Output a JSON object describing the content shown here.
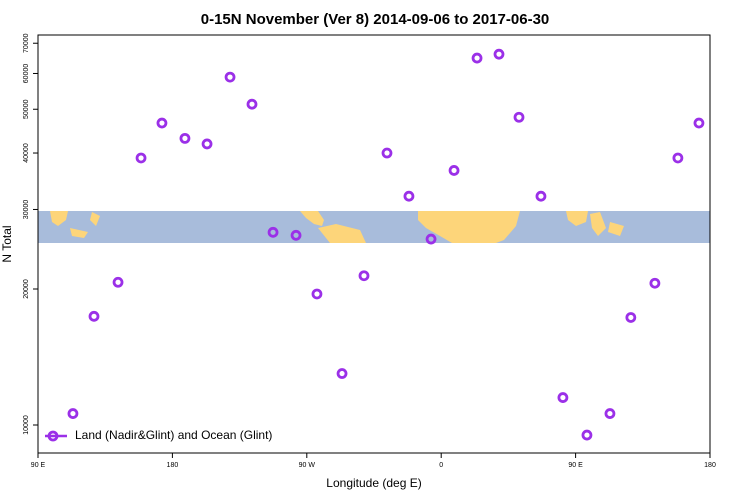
{
  "chart_data": {
    "type": "scatter",
    "title": "0-15N November (Ver 8)   2014-09-06 to 2017-06-30",
    "xlabel": "Longitude (deg E)",
    "ylabel": "N Total",
    "series": [
      {
        "name": "Land (Nadir&Glint) and Ocean (Glint)",
        "color": "#9b30e8",
        "x": [
          113.4,
          127.5,
          143.6,
          159,
          173,
          188.4,
          203.2,
          218.6,
          233.3,
          247.4,
          262.8,
          276.8,
          293.6,
          308.3,
          323.7,
          338.4,
          353.2,
          368.6,
          384,
          398.7,
          412.1,
          426.8,
          441.5,
          457.6,
          473,
          487,
          503.1,
          518.5,
          532.6
        ],
        "values": [
          10600,
          17400,
          20700,
          39000,
          46600,
          43100,
          41900,
          58900,
          51300,
          26700,
          26300,
          19500,
          13000,
          21400,
          40000,
          32100,
          25800,
          36600,
          64900,
          66200,
          48000,
          32100,
          11500,
          9500,
          10600,
          17300,
          20600,
          39000,
          46600
        ]
      }
    ],
    "xlim": [
      90,
      540
    ],
    "xticks": [
      {
        "value": 90,
        "label": "90 E"
      },
      {
        "value": 180,
        "label": "180"
      },
      {
        "value": 270,
        "label": "90 W"
      },
      {
        "value": 360,
        "label": "0"
      },
      {
        "value": 450,
        "label": "90 E"
      },
      {
        "value": 540,
        "label": "180"
      }
    ],
    "ylim": [
      8670,
      73000
    ],
    "yticks": [
      10000,
      20000,
      30000,
      40000,
      50000,
      60000,
      70000
    ],
    "yscale": "log",
    "legend": "lower left"
  }
}
